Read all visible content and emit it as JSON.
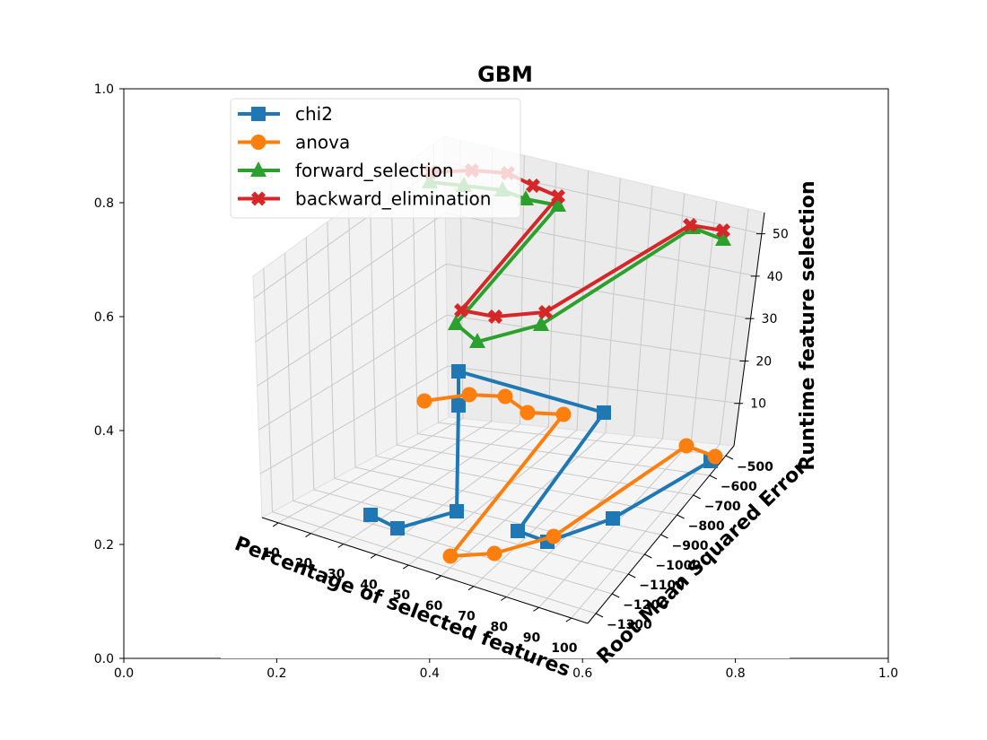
{
  "chart_data": {
    "type": "line",
    "projection": "3d",
    "title": "GBM",
    "xlabel": "Percentage of selected features",
    "ylabel": "Root Mean Squared Error",
    "zlabel": "Runtime feature selection",
    "x_ticks": [
      "10",
      "20",
      "30",
      "40",
      "50",
      "60",
      "70",
      "80",
      "90",
      "100"
    ],
    "y_ticks": [
      "−500",
      "−600",
      "−700",
      "−800",
      "−900",
      "−1000",
      "−1100",
      "−1200",
      "−1300"
    ],
    "z_ticks": [
      "10",
      "20",
      "30",
      "40",
      "50"
    ],
    "frame_x_ticks": [
      "0.0",
      "0.2",
      "0.4",
      "0.6",
      "0.8",
      "1.0"
    ],
    "frame_y_ticks": [
      "0.0",
      "0.2",
      "0.4",
      "0.6",
      "0.8",
      "1.0"
    ],
    "legend_position": "upper-left",
    "grid": true,
    "series": [
      {
        "name": "chi2",
        "color": "#1f77b4",
        "marker": "square",
        "x": [
          10,
          20,
          30,
          40,
          50,
          60,
          70,
          80,
          90,
          100
        ],
        "y": [
          -1300,
          -1300,
          -1250,
          -800,
          -900,
          -850,
          -850,
          -700,
          -1000,
          -950
        ],
        "z": [
          2,
          2,
          2,
          2,
          14,
          2,
          2,
          2,
          2,
          2
        ]
      },
      {
        "name": "anova",
        "color": "#ff7f0e",
        "marker": "circle",
        "x": [
          10,
          20,
          30,
          40,
          50,
          60,
          70,
          80,
          90,
          100
        ],
        "y": [
          -850,
          -1100,
          -1150,
          -850,
          -1200,
          -800,
          -800,
          -750,
          -900,
          -1000
        ],
        "z": [
          2,
          2,
          2,
          2,
          2,
          2,
          2,
          2,
          2,
          2
        ]
      },
      {
        "name": "forward_selection",
        "color": "#2ca02c",
        "marker": "triangle",
        "x": [
          10,
          20,
          30,
          40,
          50,
          60,
          70,
          80,
          90,
          100
        ],
        "y": [
          -500,
          -500,
          -550,
          -800,
          -850,
          -550,
          -650,
          -600,
          -1000,
          -1000
        ],
        "z": [
          47,
          47,
          45,
          45,
          45,
          24,
          24,
          24,
          48,
          48
        ]
      },
      {
        "name": "backward_elimination",
        "color": "#d62728",
        "marker": "x",
        "x": [
          10,
          20,
          30,
          40,
          50,
          60,
          70,
          80,
          90,
          100
        ],
        "y": [
          -500,
          -550,
          -650,
          -750,
          -850,
          -550,
          -650,
          -600,
          -1000,
          -1000
        ],
        "z": [
          49,
          51,
          53,
          50,
          48,
          32,
          30,
          28,
          51,
          51
        ]
      }
    ]
  }
}
